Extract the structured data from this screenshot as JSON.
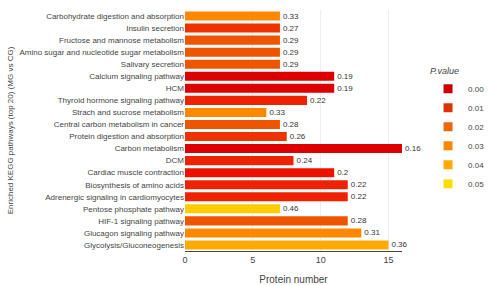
{
  "chart_data": {
    "type": "bar",
    "orientation": "horizontal",
    "xlabel": "Protein number",
    "ylabel": "Enriched KEGG pathways (top 20) (MG vs CG)",
    "categories": [
      "Carbohydrate digestion and absorption",
      "Insulin secretion",
      "Fructose and mannose metabolism",
      "Amino sugar and nucleotide sugar metabolism",
      "Salivary secretion",
      "Calcium signaling pathway",
      "HCM",
      "Thyroid hormone signaling pathway",
      "Strach and sucrose metabolism",
      "Central carbon metabolism in cancer",
      "Protein digestion and absorption",
      "Carbon metabolism",
      "DCM",
      "Cardiac muscle contraction",
      "Biosynthesis of amino acids",
      "Adrenergic signaling in cardiomyocytes",
      "Pentose phosphate pathway",
      "HIF-1 signaling pathway",
      "Glucagon signaling pathway",
      "Glycolysis/Gluconeogenesis"
    ],
    "values": [
      7,
      7,
      7,
      7,
      7,
      11,
      11,
      9,
      6,
      7,
      7.5,
      16,
      8,
      11,
      12,
      12,
      7,
      12,
      13,
      15
    ],
    "colors": [
      "#ff8800",
      "#ee3300",
      "#ee5500",
      "#ee5500",
      "#ee5500",
      "#dd0000",
      "#dd0000",
      "#ee2200",
      "#ff8800",
      "#ee5500",
      "#ee3300",
      "#dd0000",
      "#ee2200",
      "#ee1100",
      "#ee2200",
      "#ee2200",
      "#ffcc00",
      "#ee5500",
      "#ff8800",
      "#ffaa00"
    ],
    "pvalue_labels": [
      "0.33",
      "0.27",
      "0.29",
      "0.29",
      "0.29",
      "0.19",
      "0.19",
      "0.22",
      "0.33",
      "0.28",
      "0.26",
      "0.16",
      "0.24",
      "0.2",
      "0.22",
      "0.22",
      "0.46",
      "0.28",
      "0.31",
      "0.36"
    ],
    "xlim": [
      0,
      16
    ],
    "xticks": [
      0,
      5,
      10,
      15
    ],
    "grid": true,
    "legend": "right",
    "legend_title": "P.value",
    "legend_items": [
      {
        "name": "0.00",
        "color": "#cc0000"
      },
      {
        "name": "0.01",
        "color": "#dd3300"
      },
      {
        "name": "0.02",
        "color": "#ee6600"
      },
      {
        "name": "0.03",
        "color": "#ff8800"
      },
      {
        "name": "0.04",
        "color": "#ffaa00"
      },
      {
        "name": "0.05",
        "color": "#ffdd00"
      }
    ]
  }
}
